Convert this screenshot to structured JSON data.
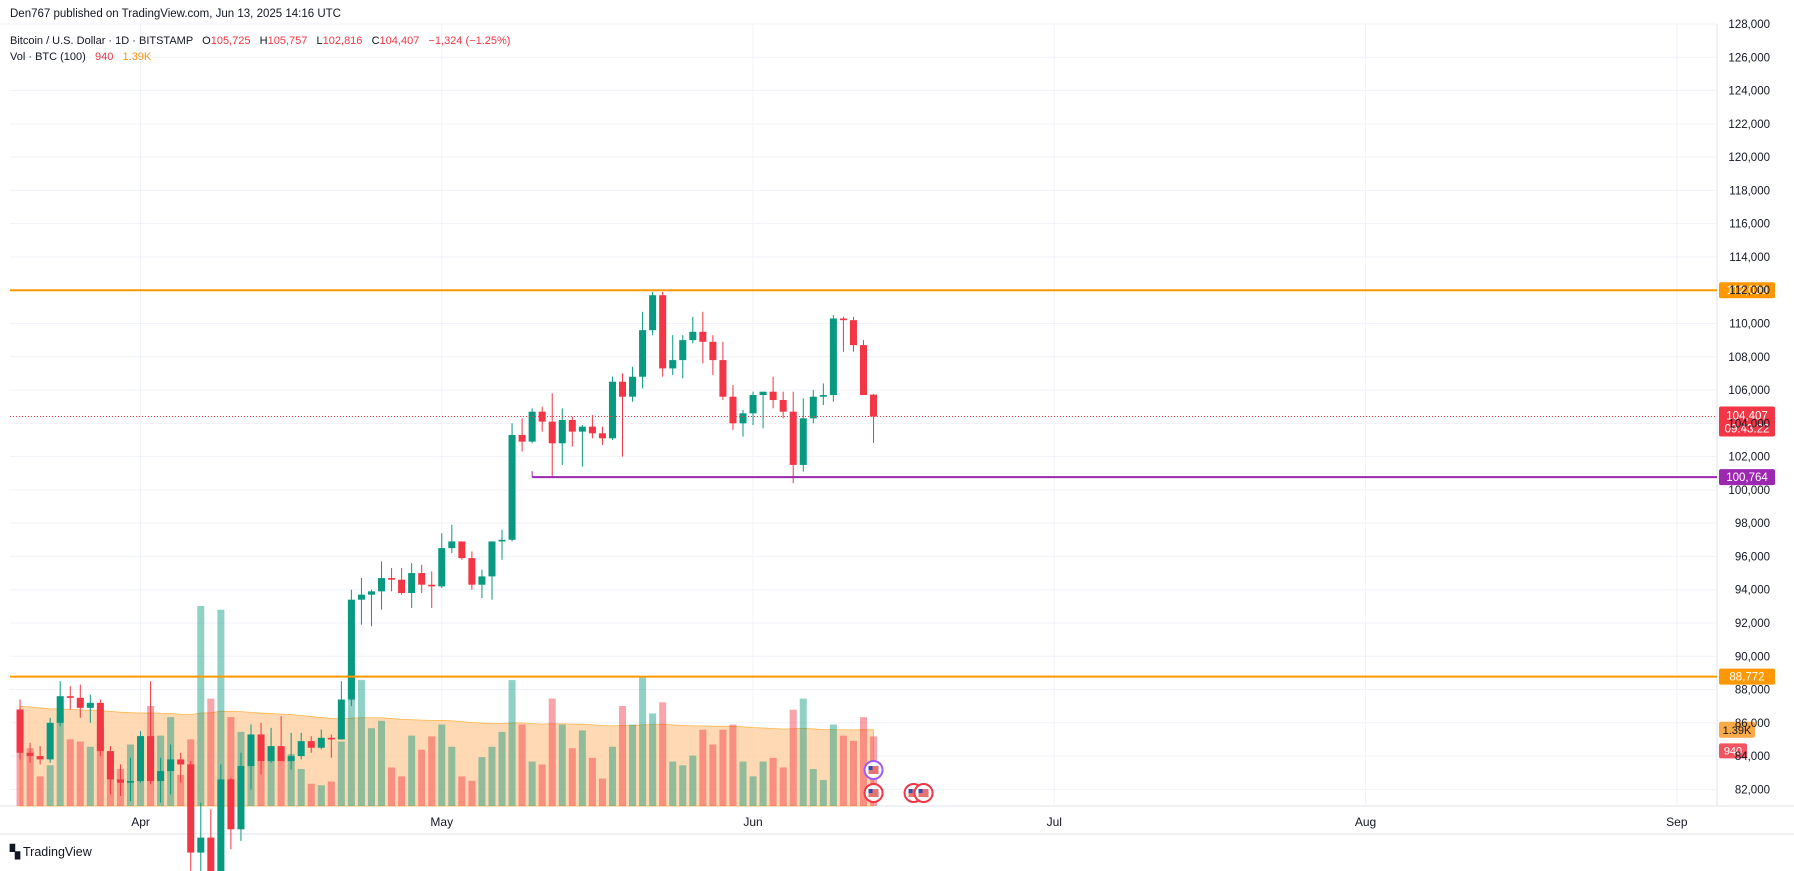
{
  "publisher_line": "Den767 published on TradingView.com, Jun 13, 2025 14:16 UTC",
  "symbol": {
    "name": "Bitcoin / U.S. Dollar · 1D · BITSTAMP",
    "open_label": "O",
    "open": "105,725",
    "high_label": "H",
    "high": "105,757",
    "low_label": "L",
    "low": "102,816",
    "close_label": "C",
    "close": "104,407",
    "change": "−1,324 (−1.25%)"
  },
  "volume_indicator": {
    "name": "Vol · BTC (100)",
    "value": "940",
    "ma_value": "1.39K"
  },
  "footer": {
    "logo_text": "TradingView"
  },
  "colors": {
    "up": "#089981",
    "down": "#f23645",
    "resistance": "#ff9800",
    "support": "#9c27b0",
    "vol_ma_fill": "#ffcc99"
  },
  "chart_data": {
    "type": "candlestick",
    "title": "Bitcoin / U.S. Dollar · 1D · BITSTAMP",
    "ylim": [
      81000,
      128000
    ],
    "y_ticks": [
      82000,
      84000,
      86000,
      88000,
      90000,
      92000,
      94000,
      96000,
      98000,
      100000,
      102000,
      104000,
      106000,
      108000,
      110000,
      112000,
      114000,
      116000,
      118000,
      120000,
      122000,
      124000,
      126000,
      128000
    ],
    "x_ticks": [
      {
        "label": "Apr",
        "date": "2025-04-01"
      },
      {
        "label": "May",
        "date": "2025-05-01"
      },
      {
        "label": "Jun",
        "date": "2025-06-01"
      },
      {
        "label": "Jul",
        "date": "2025-07-01"
      },
      {
        "label": "Aug",
        "date": "2025-08-01"
      },
      {
        "label": "Sep",
        "date": "2025-09-01"
      }
    ],
    "x_range": [
      "2025-03-19",
      "2025-09-05"
    ],
    "horizontal_lines": [
      {
        "price": 112000,
        "label": "112,000",
        "color": "#ff9800"
      },
      {
        "price": 88772,
        "label": "88,772",
        "color": "#ff9800"
      },
      {
        "price": 100764,
        "label": "100,764",
        "color": "#9c27b0",
        "start_date": "2025-05-10"
      }
    ],
    "last_price": {
      "price": 104407,
      "label": "104,407",
      "countdown": "09:43:22"
    },
    "volume_labels": {
      "ma": "1.39K",
      "last": "940"
    },
    "candles": [
      {
        "date": "2025-03-20",
        "o": 86800,
        "h": 87400,
        "l": 83800,
        "c": 84200,
        "v": 1100
      },
      {
        "date": "2025-03-21",
        "o": 84200,
        "h": 84800,
        "l": 83600,
        "c": 84000,
        "v": 780
      },
      {
        "date": "2025-03-22",
        "o": 84000,
        "h": 84600,
        "l": 83500,
        "c": 83800,
        "v": 400
      },
      {
        "date": "2025-03-23",
        "o": 83800,
        "h": 86300,
        "l": 83600,
        "c": 86000,
        "v": 550
      },
      {
        "date": "2025-03-24",
        "o": 86000,
        "h": 88500,
        "l": 85800,
        "c": 87600,
        "v": 1200
      },
      {
        "date": "2025-03-25",
        "o": 87600,
        "h": 88200,
        "l": 86800,
        "c": 87500,
        "v": 900
      },
      {
        "date": "2025-03-26",
        "o": 87500,
        "h": 88300,
        "l": 86300,
        "c": 86900,
        "v": 870
      },
      {
        "date": "2025-03-27",
        "o": 86900,
        "h": 87700,
        "l": 86000,
        "c": 87200,
        "v": 800
      },
      {
        "date": "2025-03-28",
        "o": 87200,
        "h": 87400,
        "l": 84000,
        "c": 84300,
        "v": 1050
      },
      {
        "date": "2025-03-29",
        "o": 84300,
        "h": 84600,
        "l": 81700,
        "c": 82600,
        "v": 700
      },
      {
        "date": "2025-03-30",
        "o": 82600,
        "h": 83500,
        "l": 81600,
        "c": 82400,
        "v": 500
      },
      {
        "date": "2025-03-31",
        "o": 82400,
        "h": 83900,
        "l": 81300,
        "c": 82500,
        "v": 830
      },
      {
        "date": "2025-04-01",
        "o": 82500,
        "h": 85500,
        "l": 82400,
        "c": 85200,
        "v": 940
      },
      {
        "date": "2025-04-02",
        "o": 85200,
        "h": 88500,
        "l": 82300,
        "c": 82500,
        "v": 1350
      },
      {
        "date": "2025-04-03",
        "o": 82500,
        "h": 83900,
        "l": 81200,
        "c": 83100,
        "v": 950
      },
      {
        "date": "2025-04-04",
        "o": 83100,
        "h": 84700,
        "l": 81700,
        "c": 83800,
        "v": 1200
      },
      {
        "date": "2025-04-05",
        "o": 83800,
        "h": 84200,
        "l": 82400,
        "c": 83500,
        "v": 420
      },
      {
        "date": "2025-04-06",
        "o": 83500,
        "h": 83700,
        "l": 77100,
        "c": 78200,
        "v": 900
      },
      {
        "date": "2025-04-07",
        "o": 78200,
        "h": 81200,
        "l": 74500,
        "c": 79100,
        "v": 2700
      },
      {
        "date": "2025-04-08",
        "o": 79100,
        "h": 80800,
        "l": 76200,
        "c": 76300,
        "v": 1450
      },
      {
        "date": "2025-04-09",
        "o": 76300,
        "h": 83500,
        "l": 74600,
        "c": 82600,
        "v": 2650
      },
      {
        "date": "2025-04-10",
        "o": 82600,
        "h": 82700,
        "l": 78400,
        "c": 79600,
        "v": 1200
      },
      {
        "date": "2025-04-11",
        "o": 79600,
        "h": 84200,
        "l": 78900,
        "c": 83400,
        "v": 1000
      },
      {
        "date": "2025-04-12",
        "o": 83400,
        "h": 85900,
        "l": 82000,
        "c": 85300,
        "v": 640
      },
      {
        "date": "2025-04-13",
        "o": 85300,
        "h": 86000,
        "l": 82900,
        "c": 83700,
        "v": 620
      },
      {
        "date": "2025-04-14",
        "o": 83700,
        "h": 85700,
        "l": 83600,
        "c": 84600,
        "v": 800
      },
      {
        "date": "2025-04-15",
        "o": 84600,
        "h": 86400,
        "l": 83700,
        "c": 83700,
        "v": 760
      },
      {
        "date": "2025-04-16",
        "o": 83700,
        "h": 85400,
        "l": 83200,
        "c": 84000,
        "v": 700
      },
      {
        "date": "2025-04-17",
        "o": 84000,
        "h": 85400,
        "l": 83800,
        "c": 84900,
        "v": 500
      },
      {
        "date": "2025-04-18",
        "o": 84900,
        "h": 85200,
        "l": 84200,
        "c": 84500,
        "v": 300
      },
      {
        "date": "2025-04-19",
        "o": 84500,
        "h": 85600,
        "l": 84400,
        "c": 85100,
        "v": 280
      },
      {
        "date": "2025-04-20",
        "o": 85100,
        "h": 85300,
        "l": 83900,
        "c": 85000,
        "v": 330
      },
      {
        "date": "2025-04-21",
        "o": 85000,
        "h": 88500,
        "l": 85000,
        "c": 87400,
        "v": 870
      },
      {
        "date": "2025-04-22",
        "o": 87400,
        "h": 94000,
        "l": 87000,
        "c": 93400,
        "v": 1800
      },
      {
        "date": "2025-04-23",
        "o": 93400,
        "h": 94700,
        "l": 91900,
        "c": 93700,
        "v": 1700
      },
      {
        "date": "2025-04-24",
        "o": 93700,
        "h": 94000,
        "l": 91800,
        "c": 93900,
        "v": 1050
      },
      {
        "date": "2025-04-25",
        "o": 93900,
        "h": 95700,
        "l": 92800,
        "c": 94700,
        "v": 1150
      },
      {
        "date": "2025-04-26",
        "o": 94700,
        "h": 95300,
        "l": 93900,
        "c": 94600,
        "v": 520
      },
      {
        "date": "2025-04-27",
        "o": 94600,
        "h": 95300,
        "l": 93700,
        "c": 93800,
        "v": 400
      },
      {
        "date": "2025-04-28",
        "o": 93800,
        "h": 95600,
        "l": 92900,
        "c": 95000,
        "v": 950
      },
      {
        "date": "2025-04-29",
        "o": 95000,
        "h": 95500,
        "l": 93800,
        "c": 94300,
        "v": 760
      },
      {
        "date": "2025-04-30",
        "o": 94300,
        "h": 95100,
        "l": 92900,
        "c": 94200,
        "v": 940
      },
      {
        "date": "2025-05-01",
        "o": 94200,
        "h": 97400,
        "l": 94100,
        "c": 96500,
        "v": 1100
      },
      {
        "date": "2025-05-02",
        "o": 96500,
        "h": 97900,
        "l": 96200,
        "c": 96900,
        "v": 800
      },
      {
        "date": "2025-05-03",
        "o": 96900,
        "h": 96900,
        "l": 95800,
        "c": 95900,
        "v": 400
      },
      {
        "date": "2025-05-04",
        "o": 95900,
        "h": 96300,
        "l": 94000,
        "c": 94300,
        "v": 340
      },
      {
        "date": "2025-05-05",
        "o": 94300,
        "h": 95200,
        "l": 93500,
        "c": 94800,
        "v": 660
      },
      {
        "date": "2025-05-06",
        "o": 94800,
        "h": 96900,
        "l": 93400,
        "c": 96900,
        "v": 800
      },
      {
        "date": "2025-05-07",
        "o": 96900,
        "h": 97600,
        "l": 95800,
        "c": 97000,
        "v": 1000
      },
      {
        "date": "2025-05-08",
        "o": 97000,
        "h": 104000,
        "l": 96900,
        "c": 103300,
        "v": 1700
      },
      {
        "date": "2025-05-09",
        "o": 103300,
        "h": 104300,
        "l": 102300,
        "c": 102900,
        "v": 1100
      },
      {
        "date": "2025-05-10",
        "o": 102900,
        "h": 104900,
        "l": 102800,
        "c": 104700,
        "v": 600
      },
      {
        "date": "2025-05-11",
        "o": 104700,
        "h": 105000,
        "l": 103500,
        "c": 104100,
        "v": 560
      },
      {
        "date": "2025-05-12",
        "o": 104100,
        "h": 105800,
        "l": 100800,
        "c": 102800,
        "v": 1450
      },
      {
        "date": "2025-05-13",
        "o": 102800,
        "h": 104900,
        "l": 101500,
        "c": 104200,
        "v": 1100
      },
      {
        "date": "2025-05-14",
        "o": 104200,
        "h": 104400,
        "l": 102600,
        "c": 103500,
        "v": 780
      },
      {
        "date": "2025-05-15",
        "o": 103500,
        "h": 103900,
        "l": 101400,
        "c": 103800,
        "v": 1020
      },
      {
        "date": "2025-05-16",
        "o": 103800,
        "h": 104500,
        "l": 103100,
        "c": 103400,
        "v": 650
      },
      {
        "date": "2025-05-17",
        "o": 103400,
        "h": 103800,
        "l": 102700,
        "c": 103100,
        "v": 370
      },
      {
        "date": "2025-05-18",
        "o": 103100,
        "h": 106800,
        "l": 103000,
        "c": 106500,
        "v": 800
      },
      {
        "date": "2025-05-19",
        "o": 106500,
        "h": 107000,
        "l": 102000,
        "c": 105600,
        "v": 1350
      },
      {
        "date": "2025-05-20",
        "o": 105600,
        "h": 107400,
        "l": 105300,
        "c": 106800,
        "v": 1100
      },
      {
        "date": "2025-05-21",
        "o": 106800,
        "h": 110700,
        "l": 106100,
        "c": 109600,
        "v": 1750
      },
      {
        "date": "2025-05-22",
        "o": 109600,
        "h": 111900,
        "l": 109300,
        "c": 111700,
        "v": 1250
      },
      {
        "date": "2025-05-23",
        "o": 111700,
        "h": 111900,
        "l": 106800,
        "c": 107300,
        "v": 1400
      },
      {
        "date": "2025-05-24",
        "o": 107300,
        "h": 109300,
        "l": 106900,
        "c": 107800,
        "v": 600
      },
      {
        "date": "2025-05-25",
        "o": 107800,
        "h": 109300,
        "l": 106700,
        "c": 109000,
        "v": 550
      },
      {
        "date": "2025-05-26",
        "o": 109000,
        "h": 110400,
        "l": 108800,
        "c": 109500,
        "v": 680
      },
      {
        "date": "2025-05-27",
        "o": 109500,
        "h": 110700,
        "l": 107600,
        "c": 108900,
        "v": 1030
      },
      {
        "date": "2025-05-28",
        "o": 108900,
        "h": 109300,
        "l": 106900,
        "c": 107800,
        "v": 830
      },
      {
        "date": "2025-05-29",
        "o": 107800,
        "h": 108900,
        "l": 105400,
        "c": 105600,
        "v": 1030
      },
      {
        "date": "2025-05-30",
        "o": 105600,
        "h": 106300,
        "l": 103600,
        "c": 104000,
        "v": 1100
      },
      {
        "date": "2025-05-31",
        "o": 104000,
        "h": 104800,
        "l": 103200,
        "c": 104600,
        "v": 600
      },
      {
        "date": "2025-06-01",
        "o": 104600,
        "h": 105900,
        "l": 103900,
        "c": 105700,
        "v": 400
      },
      {
        "date": "2025-06-02",
        "o": 105700,
        "h": 105900,
        "l": 103700,
        "c": 105900,
        "v": 600
      },
      {
        "date": "2025-06-03",
        "o": 105900,
        "h": 106800,
        "l": 104900,
        "c": 105400,
        "v": 650
      },
      {
        "date": "2025-06-04",
        "o": 105400,
        "h": 105900,
        "l": 104300,
        "c": 104700,
        "v": 520
      },
      {
        "date": "2025-06-05",
        "o": 104700,
        "h": 105900,
        "l": 100400,
        "c": 101500,
        "v": 1300
      },
      {
        "date": "2025-06-06",
        "o": 101500,
        "h": 105500,
        "l": 101100,
        "c": 104300,
        "v": 1450
      },
      {
        "date": "2025-06-07",
        "o": 104300,
        "h": 106000,
        "l": 104000,
        "c": 105600,
        "v": 500
      },
      {
        "date": "2025-06-08",
        "o": 105600,
        "h": 106400,
        "l": 105100,
        "c": 105700,
        "v": 350
      },
      {
        "date": "2025-06-09",
        "o": 105700,
        "h": 110500,
        "l": 105300,
        "c": 110300,
        "v": 1100
      },
      {
        "date": "2025-06-10",
        "o": 110300,
        "h": 110400,
        "l": 108300,
        "c": 110200,
        "v": 950
      },
      {
        "date": "2025-06-11",
        "o": 110200,
        "h": 110400,
        "l": 108300,
        "c": 108700,
        "v": 880
      },
      {
        "date": "2025-06-12",
        "o": 108700,
        "h": 109000,
        "l": 105700,
        "c": 105700,
        "v": 1200
      },
      {
        "date": "2025-06-13",
        "o": 105725,
        "h": 105757,
        "l": 102816,
        "c": 104407,
        "v": 940
      }
    ]
  }
}
